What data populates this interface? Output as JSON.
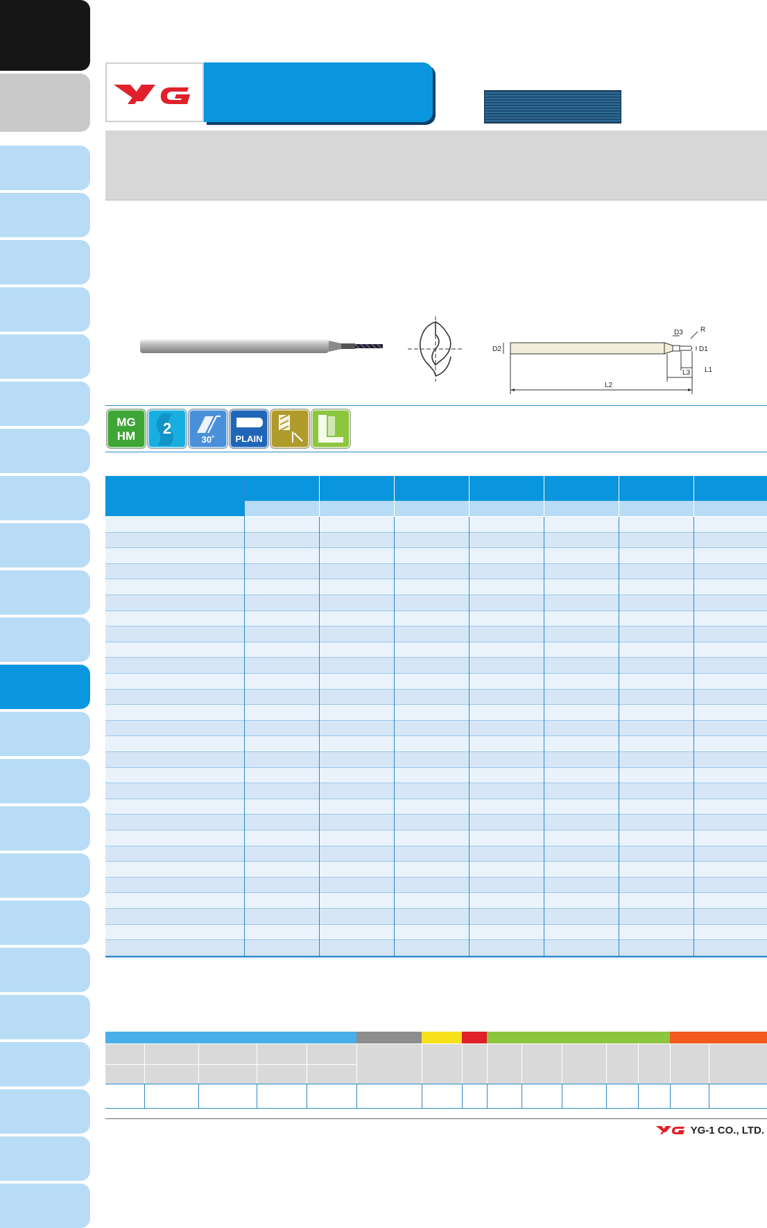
{
  "header": {
    "logo_text": "YG"
  },
  "diagram": {
    "labels": {
      "d2": "D2",
      "d3": "D3",
      "r": "R",
      "d1": "D1",
      "l1": "L1",
      "l3": "L3",
      "l2": "L2"
    }
  },
  "features": {
    "material": {
      "line1": "MG",
      "line2": "HM"
    },
    "flutes": "2",
    "helix": "30˚",
    "shank": "PLAIN"
  },
  "footer": {
    "logo_text": "YG",
    "company": "YG-1 CO., LTD."
  },
  "colors": {
    "brand_red": "#e0212b",
    "brand_blue": "#0a96de",
    "tab_light": "#b8dcf5",
    "tab_active": "#0a96de",
    "table_header": "#0a96de",
    "table_subheader": "#b8dcf5",
    "row_light": "#eaf3fb",
    "row_dark": "#d6e6f6"
  }
}
